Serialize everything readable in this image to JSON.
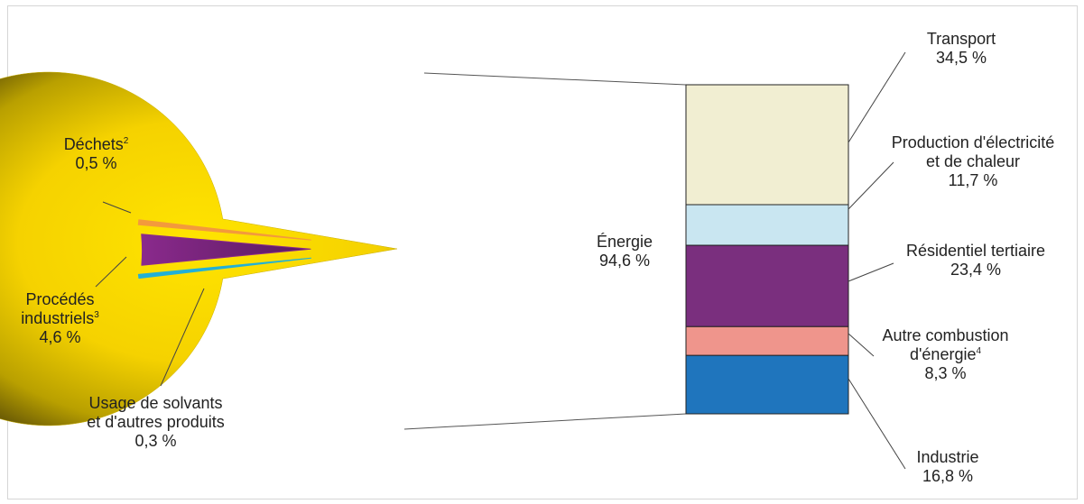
{
  "chart_data": {
    "type": "pie",
    "pie": {
      "slices": [
        {
          "name": "Énergie",
          "value": 94.6,
          "value_label": "94,6 %",
          "color": "#f2cc00"
        },
        {
          "name": "Déchets",
          "note": "2",
          "value": 0.5,
          "value_label": "0,5 %",
          "color": "#f39a3c"
        },
        {
          "name_lines": [
            "Procédés",
            "industriels"
          ],
          "note": "3",
          "value": 4.6,
          "value_label": "4,6 %",
          "color": "#8c2a8c"
        },
        {
          "name_lines": [
            "Usage de solvants",
            "et d'autres produits"
          ],
          "value": 0.3,
          "value_label": "0,3 %",
          "color": "#22b0d6"
        }
      ]
    },
    "breakdown_of": "Énergie",
    "stacked_bar": {
      "segments": [
        {
          "name": "Transport",
          "value": 34.5,
          "value_label": "34,5 %",
          "color": "#f1eed2"
        },
        {
          "name_lines": [
            "Production d'électricité",
            "et de chaleur"
          ],
          "value": 11.7,
          "value_label": "11,7 %",
          "color": "#c9e6f1"
        },
        {
          "name": "Résidentiel tertiaire",
          "value": 23.4,
          "value_label": "23,4 %",
          "color": "#7a2f7e"
        },
        {
          "name_lines": [
            "Autre combustion",
            "d'énergie"
          ],
          "note": "4",
          "value": 8.3,
          "value_label": "8,3 %",
          "color": "#ef958c"
        },
        {
          "name": "Industrie",
          "value": 16.8,
          "value_label": "16,8 %",
          "color": "#1f75bd"
        }
      ]
    }
  }
}
